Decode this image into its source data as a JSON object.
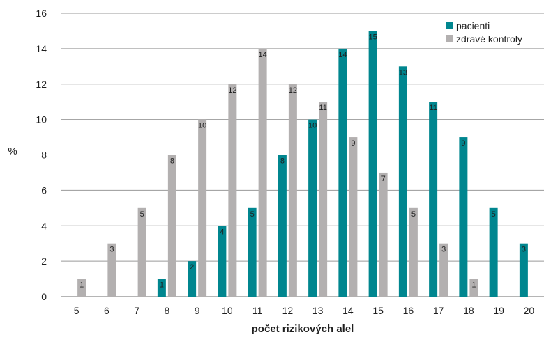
{
  "chart_data": {
    "type": "bar",
    "title": "",
    "xlabel": "počet rizikových alel",
    "ylabel": "%",
    "ylim": [
      0,
      16
    ],
    "yticks": [
      0,
      2,
      4,
      6,
      8,
      10,
      12,
      14,
      16
    ],
    "grid": true,
    "legend_position": "top-right",
    "categories": [
      "5",
      "6",
      "7",
      "8",
      "9",
      "10",
      "11",
      "12",
      "13",
      "14",
      "15",
      "16",
      "17",
      "18",
      "19",
      "20"
    ],
    "series": [
      {
        "name": "pacienti",
        "color": "#00868f",
        "values": [
          0,
          0,
          0,
          1,
          2,
          4,
          5,
          8,
          10,
          14,
          15,
          13,
          11,
          9,
          5,
          3
        ],
        "labels": [
          "",
          "",
          "",
          "1",
          "2",
          "4",
          "5",
          "8",
          "10",
          "14",
          "15",
          "13",
          "11",
          "9",
          "5",
          "3"
        ]
      },
      {
        "name": "zdravé kontroly",
        "color": "#b3b0b0",
        "values": [
          1,
          3,
          5,
          8,
          10,
          12,
          14,
          12,
          11,
          9,
          7,
          5,
          3,
          1,
          0,
          0
        ],
        "labels": [
          "1",
          "3",
          "5",
          "8",
          "10",
          "12",
          "14",
          "12",
          "11",
          "9",
          "7",
          "5",
          "3",
          "1",
          "",
          ""
        ]
      }
    ]
  }
}
